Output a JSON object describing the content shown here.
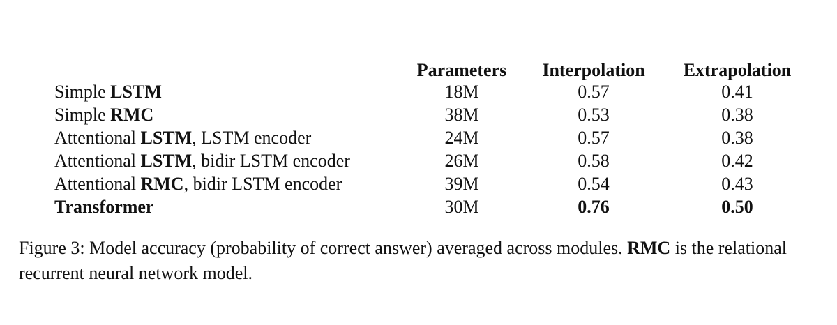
{
  "table": {
    "header": [
      "Parameters",
      "Interpolation",
      "Extrapolation"
    ],
    "groups": [
      [
        {
          "label": [
            {
              "text": "Simple ",
              "bold": false
            },
            {
              "text": "LSTM",
              "bold": true
            }
          ],
          "cells": [
            {
              "text": "18M",
              "bold": false
            },
            {
              "text": "0.57",
              "bold": false
            },
            {
              "text": "0.41",
              "bold": false
            }
          ]
        },
        {
          "label": [
            {
              "text": "Simple ",
              "bold": false
            },
            {
              "text": "RMC",
              "bold": true
            }
          ],
          "cells": [
            {
              "text": "38M",
              "bold": false
            },
            {
              "text": "0.53",
              "bold": false
            },
            {
              "text": "0.38",
              "bold": false
            }
          ]
        }
      ],
      [
        {
          "label": [
            {
              "text": "Attentional ",
              "bold": false
            },
            {
              "text": "LSTM",
              "bold": true
            },
            {
              "text": ", LSTM encoder",
              "bold": false
            }
          ],
          "cells": [
            {
              "text": "24M",
              "bold": false
            },
            {
              "text": "0.57",
              "bold": false
            },
            {
              "text": "0.38",
              "bold": false
            }
          ]
        },
        {
          "label": [
            {
              "text": "Attentional ",
              "bold": false
            },
            {
              "text": "LSTM",
              "bold": true
            },
            {
              "text": ", bidir LSTM encoder",
              "bold": false
            }
          ],
          "cells": [
            {
              "text": "26M",
              "bold": false
            },
            {
              "text": "0.58",
              "bold": false
            },
            {
              "text": "0.42",
              "bold": false
            }
          ]
        },
        {
          "label": [
            {
              "text": "Attentional ",
              "bold": false
            },
            {
              "text": "RMC",
              "bold": true
            },
            {
              "text": ", bidir LSTM encoder",
              "bold": false
            }
          ],
          "cells": [
            {
              "text": "39M",
              "bold": false
            },
            {
              "text": "0.54",
              "bold": false
            },
            {
              "text": "0.43",
              "bold": false
            }
          ]
        }
      ],
      [
        {
          "label": [
            {
              "text": "Transformer",
              "bold": true
            }
          ],
          "cells": [
            {
              "text": "30M",
              "bold": false
            },
            {
              "text": "0.76",
              "bold": true
            },
            {
              "text": "0.50",
              "bold": true
            }
          ]
        }
      ]
    ]
  },
  "caption": [
    {
      "text": "Figure 3: Model accuracy (probability of correct answer) averaged across modules. ",
      "bold": false
    },
    {
      "text": "RMC",
      "bold": true
    },
    {
      "text": " is the relational recurrent neural network model.",
      "bold": false
    }
  ]
}
